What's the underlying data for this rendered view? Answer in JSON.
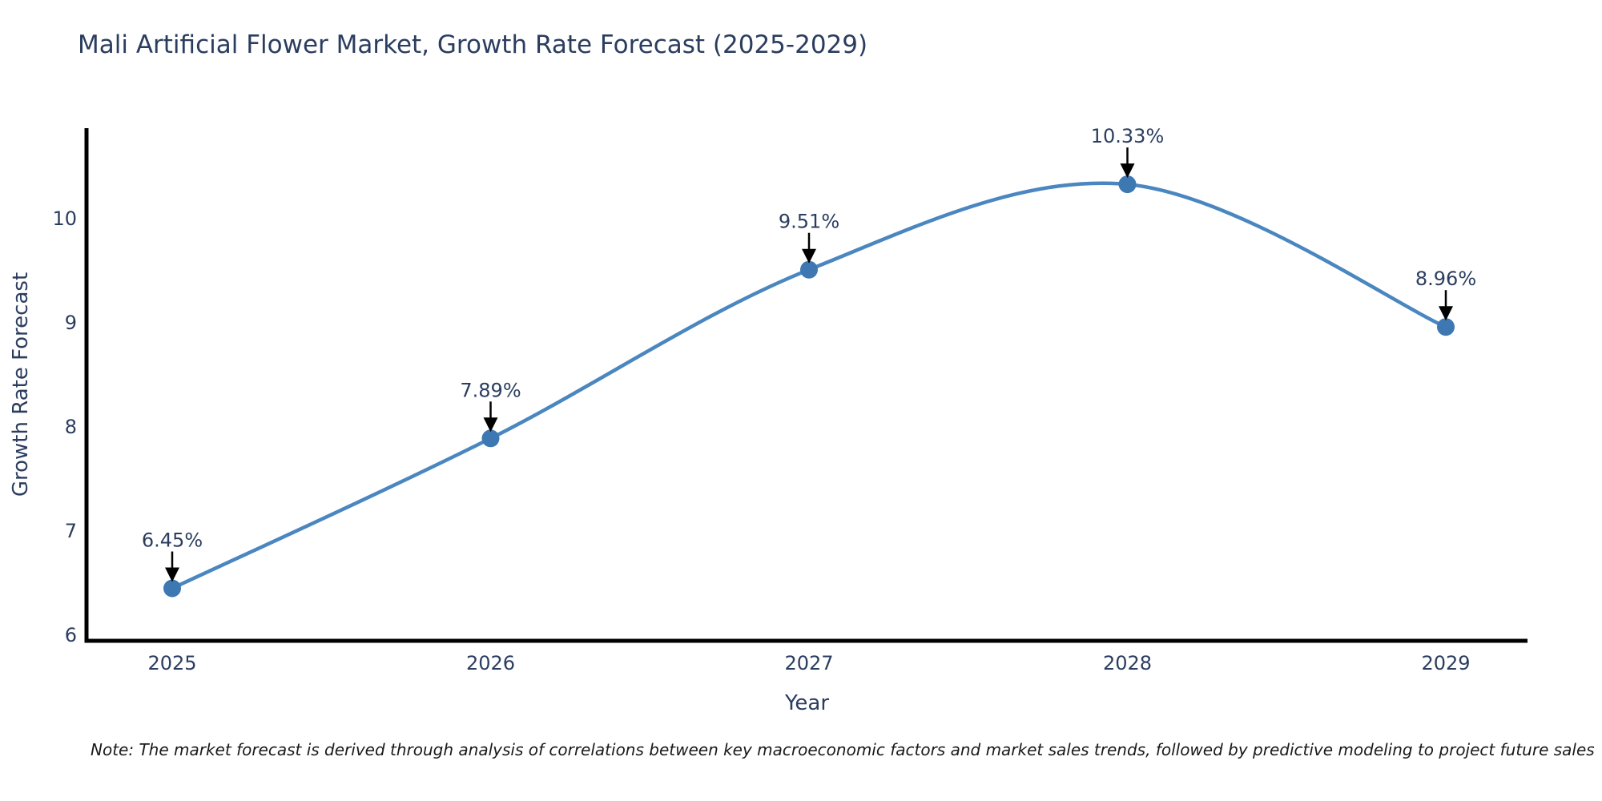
{
  "title": "Mali Artificial Flower Market, Growth Rate Forecast (2025-2029)",
  "note": "Note: The market forecast is derived through analysis of correlations between key macroeconomic factors and market sales trends, followed by predictive modeling to project future sales",
  "chart_data": {
    "type": "line",
    "title": "Mali Artificial Flower Market, Growth Rate Forecast (2025-2029)",
    "xlabel": "Year",
    "ylabel": "Growth Rate Forecast",
    "categories": [
      "2025",
      "2026",
      "2027",
      "2028",
      "2029"
    ],
    "values": [
      6.45,
      7.89,
      9.51,
      10.33,
      8.96
    ],
    "point_labels": [
      "6.45%",
      "7.89%",
      "9.51%",
      "10.33%",
      "8.96%"
    ],
    "yticks": [
      "6",
      "7",
      "8",
      "9",
      "10"
    ],
    "ylim": [
      5.95,
      10.87
    ],
    "grid": false,
    "legend": "none",
    "smooth_curve": true,
    "annotations_with_arrows": true,
    "colors": {
      "line": "#4a86c0",
      "marker": "#3d78b2",
      "text": "#2b3d5f",
      "spine": "#000000",
      "arrow": "#000000",
      "note": "#1a1a1a",
      "background": "#ffffff"
    }
  }
}
